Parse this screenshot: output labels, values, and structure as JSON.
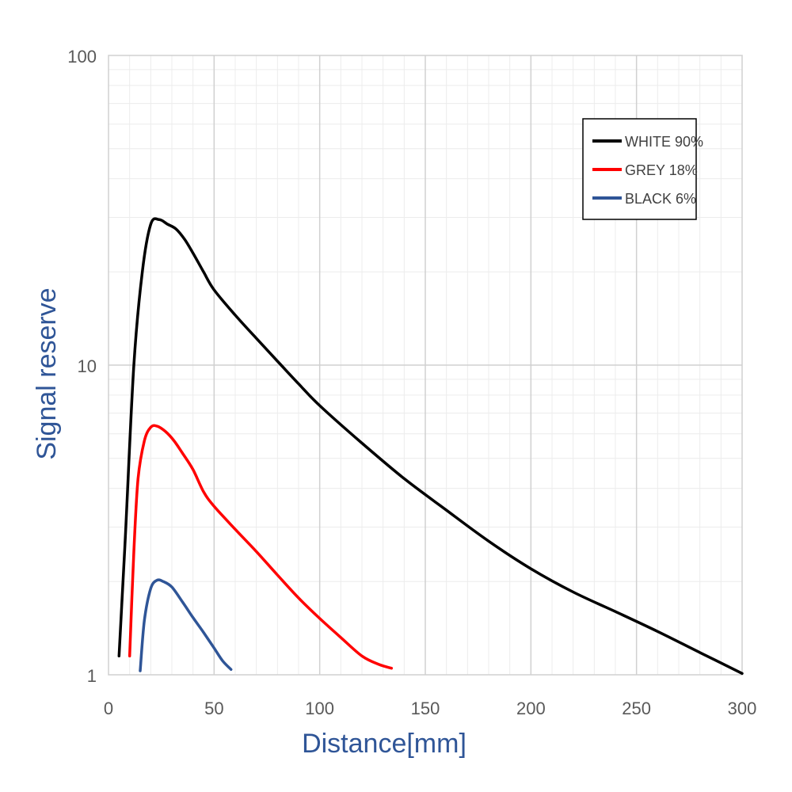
{
  "chart_data": {
    "type": "line",
    "title": "",
    "xlabel": "Distance[mm]",
    "ylabel": "Signal reserve",
    "xlim": [
      0,
      300
    ],
    "ylim": [
      1,
      100
    ],
    "yscale": "log",
    "grid": true,
    "legend_position": "top-right",
    "x_ticks": [
      "0",
      "50",
      "100",
      "150",
      "200",
      "250",
      "300"
    ],
    "y_ticks": [
      "1",
      "10",
      "100"
    ],
    "axis_title_color": "#2f5597",
    "series": [
      {
        "name": "WHITE 90%",
        "color": "#000000",
        "points": [
          [
            5,
            1.15
          ],
          [
            8,
            2.8
          ],
          [
            12,
            10
          ],
          [
            16,
            20
          ],
          [
            20,
            28.5
          ],
          [
            24,
            29.5
          ],
          [
            28,
            28.5
          ],
          [
            32,
            27.5
          ],
          [
            36,
            25.5
          ],
          [
            40,
            23
          ],
          [
            45,
            20
          ],
          [
            50,
            17.5
          ],
          [
            60,
            14.5
          ],
          [
            70,
            12.2
          ],
          [
            80,
            10.3
          ],
          [
            90,
            8.7
          ],
          [
            100,
            7.4
          ],
          [
            120,
            5.6
          ],
          [
            140,
            4.3
          ],
          [
            160,
            3.4
          ],
          [
            180,
            2.7
          ],
          [
            200,
            2.2
          ],
          [
            220,
            1.85
          ],
          [
            240,
            1.6
          ],
          [
            260,
            1.38
          ],
          [
            280,
            1.18
          ],
          [
            300,
            1.01
          ]
        ]
      },
      {
        "name": "GREY 18%",
        "color": "#ff0000",
        "points": [
          [
            10,
            1.15
          ],
          [
            12,
            2.5
          ],
          [
            14,
            4.3
          ],
          [
            17,
            5.7
          ],
          [
            20,
            6.3
          ],
          [
            23,
            6.35
          ],
          [
            27,
            6.1
          ],
          [
            31,
            5.7
          ],
          [
            35,
            5.2
          ],
          [
            40,
            4.6
          ],
          [
            45,
            3.9
          ],
          [
            50,
            3.5
          ],
          [
            60,
            2.95
          ],
          [
            70,
            2.5
          ],
          [
            80,
            2.1
          ],
          [
            90,
            1.77
          ],
          [
            100,
            1.52
          ],
          [
            110,
            1.32
          ],
          [
            120,
            1.15
          ],
          [
            128,
            1.08
          ],
          [
            134,
            1.05
          ]
        ]
      },
      {
        "name": "BLACK 6%",
        "color": "#2f5597",
        "points": [
          [
            15,
            1.03
          ],
          [
            17,
            1.5
          ],
          [
            20,
            1.9
          ],
          [
            23,
            2.02
          ],
          [
            26,
            2.0
          ],
          [
            30,
            1.92
          ],
          [
            35,
            1.72
          ],
          [
            40,
            1.53
          ],
          [
            45,
            1.37
          ],
          [
            50,
            1.22
          ],
          [
            54,
            1.11
          ],
          [
            58,
            1.04
          ]
        ]
      }
    ]
  }
}
